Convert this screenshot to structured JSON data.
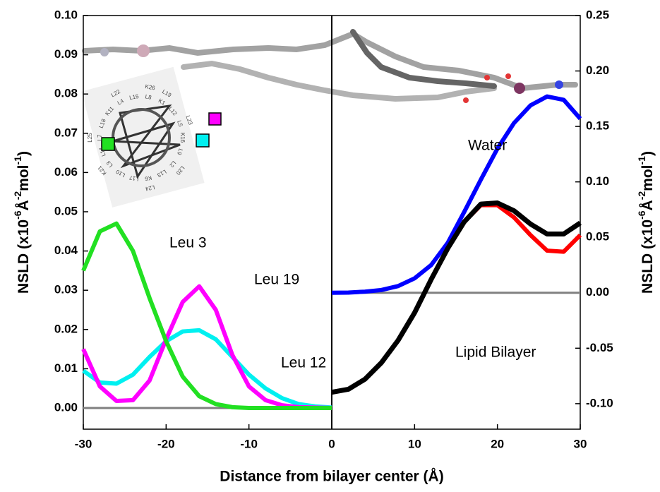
{
  "chart_data": {
    "type": "line",
    "xlabel": "Distance from bilayer center (Å)",
    "ylabel_parts": [
      "NSLD (x10",
      "-6",
      "Å",
      "-2",
      "mol",
      "-1",
      ")"
    ],
    "xlim": [
      -30,
      30
    ],
    "xticks": [
      -30,
      -20,
      -10,
      0,
      10,
      20,
      30
    ],
    "ylim": [
      -0.0054,
      0.1
    ],
    "yticks": [
      {
        "value": 0,
        "label": "0.00"
      },
      {
        "value": 0.01,
        "label": "0.01"
      },
      {
        "value": 0.02,
        "label": "0.02"
      },
      {
        "value": 0.03,
        "label": "0.03"
      },
      {
        "value": 0.04,
        "label": "0.04"
      },
      {
        "value": 0.05,
        "label": "0.05"
      },
      {
        "value": 0.06,
        "label": "0.06"
      },
      {
        "value": 0.07,
        "label": "0.07"
      },
      {
        "value": 0.08,
        "label": "0.08"
      },
      {
        "value": 0.09,
        "label": "0.09"
      },
      {
        "value": 0.1,
        "label": "0.10"
      }
    ],
    "y2lim": [
      -0.123,
      0.25
    ],
    "y2ticks": [
      {
        "value": -0.1,
        "label": "-0.10"
      },
      {
        "value": -0.05,
        "label": "-0.05"
      },
      {
        "value": 0,
        "label": "0.00"
      },
      {
        "value": 0.05,
        "label": "0.05"
      },
      {
        "value": 0.1,
        "label": "0.10"
      },
      {
        "value": 0.15,
        "label": "0.15"
      },
      {
        "value": 0.2,
        "label": "0.20"
      },
      {
        "value": 0.25,
        "label": "0.25"
      }
    ],
    "zero_line": true,
    "series": [
      {
        "name": "Leu 3",
        "color": "#22e022",
        "axis": "y",
        "x": [
          -30,
          -28,
          -26,
          -24,
          -22,
          -20,
          -18,
          -16,
          -14,
          -12,
          -10,
          -8,
          -6,
          -4,
          -2,
          0
        ],
        "values": [
          0.035,
          0.045,
          0.047,
          0.04,
          0.028,
          0.017,
          0.008,
          0.003,
          0.001,
          0.0002,
          0,
          0,
          0,
          0,
          0,
          0
        ]
      },
      {
        "name": "Leu 19",
        "color": "#ff00ff",
        "axis": "y",
        "x": [
          -30,
          -28,
          -26,
          -24,
          -22,
          -20,
          -18,
          -16,
          -14,
          -12,
          -10,
          -8,
          -6,
          -4,
          -2,
          0
        ],
        "values": [
          0.015,
          0.0055,
          0.0018,
          0.002,
          0.007,
          0.0175,
          0.027,
          0.031,
          0.025,
          0.0135,
          0.0055,
          0.002,
          0.0007,
          0.0002,
          0.0001,
          0
        ]
      },
      {
        "name": "Leu 12",
        "color": "#00f0f0",
        "axis": "y",
        "x": [
          -30,
          -28,
          -26,
          -24,
          -22,
          -20,
          -18,
          -16,
          -14,
          -12,
          -10,
          -8,
          -6,
          -4,
          -2,
          0
        ],
        "values": [
          0.0095,
          0.0065,
          0.0062,
          0.0085,
          0.013,
          0.017,
          0.0195,
          0.0198,
          0.0175,
          0.013,
          0.0085,
          0.005,
          0.0025,
          0.001,
          0.0004,
          0.0001
        ]
      },
      {
        "name": "Water",
        "color": "#0000ff",
        "axis": "y2",
        "x": [
          0,
          2,
          4,
          6,
          8,
          10,
          12,
          14,
          16,
          18,
          20,
          22,
          24,
          26,
          28,
          30
        ],
        "values": [
          0,
          0.0002,
          0.001,
          0.0025,
          0.006,
          0.013,
          0.025,
          0.045,
          0.073,
          0.102,
          0.13,
          0.153,
          0.169,
          0.177,
          0.174,
          0.157
        ]
      },
      {
        "color": "#000000",
        "axis": "y2",
        "x": [
          0,
          2,
          4,
          6,
          8,
          10,
          12,
          14,
          16,
          18,
          20,
          22,
          24,
          26,
          28,
          30
        ],
        "values": [
          -0.0897,
          -0.087,
          -0.078,
          -0.063,
          -0.043,
          -0.018,
          0.012,
          0.04,
          0.064,
          0.08,
          0.081,
          0.074,
          0.062,
          0.053,
          0.053,
          0.063
        ]
      },
      {
        "name": "Lipid Bilayer",
        "color": "#ff0000",
        "axis": "y2",
        "x": [
          0,
          2,
          4,
          6,
          8,
          10,
          12,
          14,
          16,
          18,
          20,
          22,
          24,
          26,
          28,
          30
        ],
        "values": [
          -0.0897,
          -0.087,
          -0.078,
          -0.063,
          -0.043,
          -0.018,
          0.012,
          0.04,
          0.064,
          0.079,
          0.079,
          0.068,
          0.052,
          0.038,
          0.037,
          0.052
        ]
      }
    ]
  },
  "helical_wheel": {
    "labels": [
      "K1",
      "L2",
      "L3",
      "L4",
      "L5",
      "K6",
      "L7",
      "L8",
      "L9",
      "L10",
      "K11",
      "L12",
      "L13",
      "L14",
      "L15",
      "K16",
      "L17",
      "L18",
      "L19",
      "L20",
      "K21",
      "L22",
      "L23",
      "L24",
      "L25",
      "K26"
    ]
  }
}
